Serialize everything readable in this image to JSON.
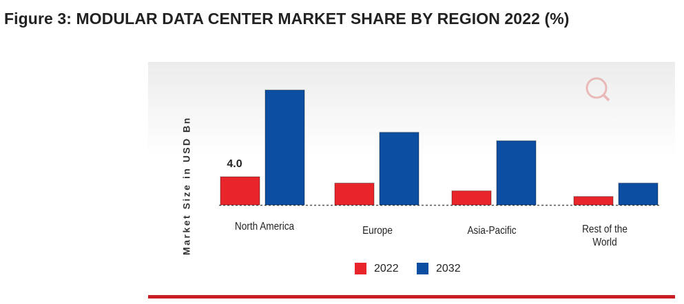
{
  "chart_data": {
    "type": "bar",
    "title": "Figure 3: MODULAR DATA CENTER MARKET SHARE BY REGION 2022 (%)",
    "y_label": "Market Size in USD Bn",
    "categories": [
      "North America",
      "Europe",
      "Asia-Pacific",
      "Rest of the World"
    ],
    "series": [
      {
        "name": "2022",
        "color": "#e8252a",
        "values": [
          4.0,
          3.1,
          2.0,
          1.2
        ],
        "value_labels": [
          "4.0",
          null,
          null,
          null
        ]
      },
      {
        "name": "2032",
        "color": "#0b4ea2",
        "values": [
          16.3,
          10.3,
          9.1,
          3.1
        ]
      }
    ]
  }
}
